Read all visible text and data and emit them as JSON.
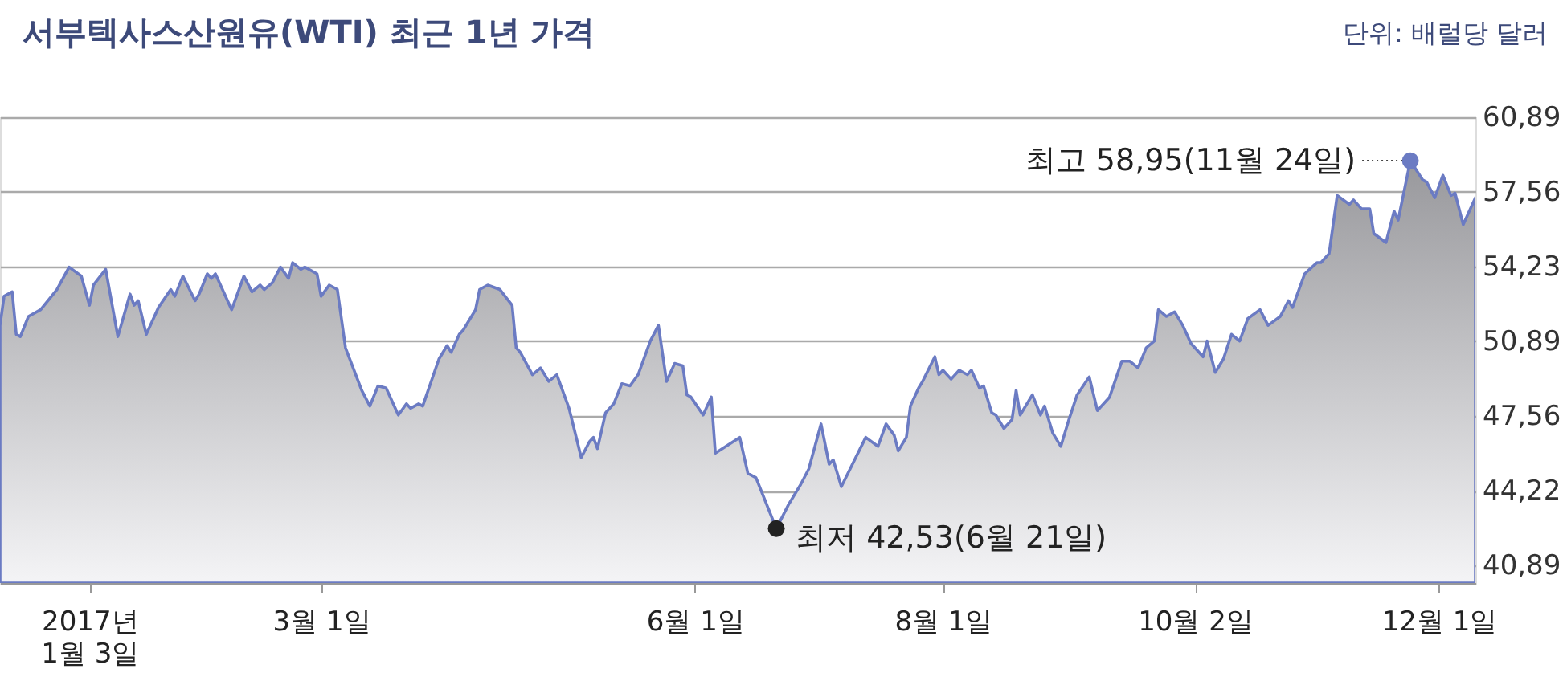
{
  "chart_data": {
    "type": "area",
    "title": "서부텍사스산원유(WTI) 최근 1년 가격",
    "subtitle": "단위: 배럴당 달러",
    "x": [
      "2016-12-12",
      "2016-12-13",
      "2016-12-15",
      "2016-12-16",
      "2016-12-17",
      "2016-12-19",
      "2016-12-22",
      "2016-12-26",
      "2016-12-29",
      "2017-01-01",
      "2017-01-03",
      "2017-01-04",
      "2017-01-07",
      "2017-01-10",
      "2017-01-13",
      "2017-01-14",
      "2017-01-15",
      "2017-01-17",
      "2017-01-20",
      "2017-01-23",
      "2017-01-24",
      "2017-01-26",
      "2017-01-29",
      "2017-01-30",
      "2017-02-01",
      "2017-02-02",
      "2017-02-03",
      "2017-02-07",
      "2017-02-10",
      "2017-02-12",
      "2017-02-14",
      "2017-02-15",
      "2017-02-17",
      "2017-02-19",
      "2017-02-21",
      "2017-02-22",
      "2017-02-24",
      "2017-02-25",
      "2017-02-28",
      "2017-03-01",
      "2017-03-03",
      "2017-03-05",
      "2017-03-07",
      "2017-03-11",
      "2017-03-13",
      "2017-03-15",
      "2017-03-17",
      "2017-03-20",
      "2017-03-22",
      "2017-03-23",
      "2017-03-25",
      "2017-03-26",
      "2017-03-30",
      "2017-04-01",
      "2017-04-02",
      "2017-04-04",
      "2017-04-05",
      "2017-04-08",
      "2017-04-09",
      "2017-04-11",
      "2017-04-14",
      "2017-04-17",
      "2017-04-18",
      "2017-04-19",
      "2017-04-22",
      "2017-04-24",
      "2017-04-26",
      "2017-04-28",
      "2017-05-01",
      "2017-05-04",
      "2017-05-06",
      "2017-05-07",
      "2017-05-08",
      "2017-05-10",
      "2017-05-12",
      "2017-05-14",
      "2017-05-16",
      "2017-05-18",
      "2017-05-20",
      "2017-05-21",
      "2017-05-23",
      "2017-05-25",
      "2017-05-27",
      "2017-05-29",
      "2017-05-30",
      "2017-05-31",
      "2017-06-03",
      "2017-06-05",
      "2017-06-06",
      "2017-06-12",
      "2017-06-14",
      "2017-06-16",
      "2017-06-21",
      "2017-06-24",
      "2017-06-27",
      "2017-06-29",
      "2017-07-02",
      "2017-07-04",
      "2017-07-05",
      "2017-07-07",
      "2017-07-13",
      "2017-07-16",
      "2017-07-18",
      "2017-07-20",
      "2017-07-21",
      "2017-07-23",
      "2017-07-24",
      "2017-07-26",
      "2017-07-27",
      "2017-07-30",
      "2017-07-31",
      "2017-08-01",
      "2017-08-03",
      "2017-08-05",
      "2017-08-07",
      "2017-08-08",
      "2017-08-10",
      "2017-08-11",
      "2017-08-13",
      "2017-08-14",
      "2017-08-16",
      "2017-08-18",
      "2017-08-19",
      "2017-08-20",
      "2017-08-23",
      "2017-08-25",
      "2017-08-26",
      "2017-08-28",
      "2017-08-30",
      "2017-09-01",
      "2017-09-03",
      "2017-09-06",
      "2017-09-08",
      "2017-09-11",
      "2017-09-14",
      "2017-09-16",
      "2017-09-18",
      "2017-09-20",
      "2017-09-22",
      "2017-09-23",
      "2017-09-25",
      "2017-09-27",
      "2017-09-29",
      "2017-10-01",
      "2017-10-04",
      "2017-10-05",
      "2017-10-07",
      "2017-10-09",
      "2017-10-11",
      "2017-10-13",
      "2017-10-15",
      "2017-10-18",
      "2017-10-20",
      "2017-10-23",
      "2017-10-25",
      "2017-10-26",
      "2017-10-29",
      "2017-11-01",
      "2017-11-02",
      "2017-11-04",
      "2017-11-06",
      "2017-11-09",
      "2017-11-10",
      "2017-11-12",
      "2017-11-14",
      "2017-11-15",
      "2017-11-18",
      "2017-11-20",
      "2017-11-21",
      "2017-11-24",
      "2017-11-27",
      "2017-11-28",
      "2017-11-30",
      "2017-12-02",
      "2017-12-04",
      "2017-12-05",
      "2017-12-07",
      "2017-12-10"
    ],
    "series": [
      {
        "color": "#6b7bc3",
        "values": [
          51.6,
          52.9,
          53.1,
          51.2,
          51.1,
          52.0,
          52.3,
          53.2,
          54.2,
          53.8,
          52.5,
          53.4,
          54.1,
          51.1,
          53.0,
          52.5,
          52.7,
          51.2,
          52.4,
          53.2,
          52.9,
          53.8,
          52.7,
          53.0,
          53.9,
          53.7,
          53.9,
          52.3,
          53.8,
          53.1,
          53.4,
          53.2,
          53.5,
          54.2,
          53.7,
          54.4,
          54.1,
          54.2,
          53.9,
          52.9,
          53.4,
          53.2,
          50.6,
          48.7,
          48.0,
          48.9,
          48.8,
          47.6,
          48.1,
          47.9,
          48.1,
          48.0,
          50.1,
          50.7,
          50.4,
          51.2,
          51.4,
          52.3,
          53.2,
          53.4,
          53.2,
          52.5,
          50.6,
          50.4,
          49.4,
          49.7,
          49.1,
          49.4,
          47.9,
          45.7,
          46.4,
          46.6,
          46.1,
          47.7,
          48.1,
          49.0,
          48.9,
          49.4,
          50.4,
          50.9,
          51.6,
          49.1,
          49.9,
          49.8,
          48.5,
          48.4,
          47.6,
          48.4,
          45.9,
          46.6,
          45.0,
          44.8,
          42.53,
          43.6,
          44.5,
          45.2,
          47.2,
          45.4,
          45.6,
          44.4,
          46.6,
          46.2,
          47.2,
          46.7,
          46.0,
          46.6,
          48.0,
          48.8,
          49.1,
          50.2,
          49.4,
          49.6,
          49.2,
          49.6,
          49.4,
          49.6,
          48.8,
          48.9,
          47.7,
          47.6,
          47.0,
          47.4,
          48.7,
          47.6,
          48.5,
          47.6,
          48.0,
          46.8,
          46.2,
          47.4,
          48.5,
          49.3,
          47.8,
          48.4,
          50.0,
          50.0,
          49.7,
          50.6,
          50.9,
          52.3,
          52.0,
          52.2,
          51.6,
          50.8,
          50.2,
          50.9,
          49.5,
          50.1,
          51.2,
          50.9,
          51.9,
          52.3,
          51.6,
          52.0,
          52.7,
          52.4,
          53.9,
          54.4,
          54.4,
          54.8,
          57.4,
          57.0,
          57.2,
          56.8,
          56.8,
          55.7,
          55.3,
          56.7,
          56.3,
          58.95,
          58.1,
          58.0,
          57.3,
          58.3,
          57.4,
          57.5,
          56.1,
          57.3
        ]
      }
    ],
    "xlim": [
      "2016-12-12",
      "2017-12-10"
    ],
    "xticks": [
      {
        "value": "2017-01-03",
        "label": "2017년\n1월 3일"
      },
      {
        "value": "2017-03-01",
        "label": "3월 1일"
      },
      {
        "value": "2017-06-01",
        "label": "6월 1일"
      },
      {
        "value": "2017-08-01",
        "label": "8월 1일"
      },
      {
        "value": "2017-10-02",
        "label": "10월 2일"
      },
      {
        "value": "2017-12-01",
        "label": "12월 1일"
      }
    ],
    "ylim": [
      40.1,
      60.89
    ],
    "yticks": [
      {
        "value": 40.89,
        "label": "40,89"
      },
      {
        "value": 44.22,
        "label": "44,22"
      },
      {
        "value": 47.56,
        "label": "47,56"
      },
      {
        "value": 50.89,
        "label": "50,89"
      },
      {
        "value": 54.23,
        "label": "54,23"
      },
      {
        "value": 57.56,
        "label": "57,56"
      },
      {
        "value": 60.89,
        "label": "60,89"
      }
    ],
    "grid": "y",
    "annotations": [
      {
        "text": "최고 58,95(11월 24일)",
        "x": "2017-11-24",
        "y": 58.95
      },
      {
        "text": "최저 42,53(6월 21일)",
        "x": "2017-06-21",
        "y": 42.53
      }
    ]
  }
}
